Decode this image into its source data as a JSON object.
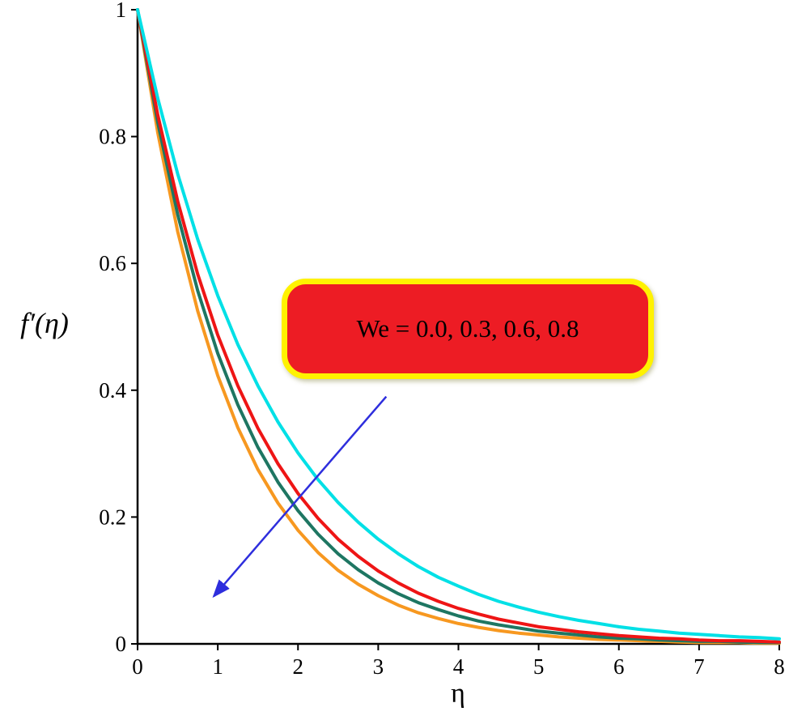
{
  "figure": {
    "background": "#ffffff"
  },
  "chart_data": {
    "type": "line",
    "title": "",
    "xlabel": "η",
    "ylabel": "f′(η)",
    "xlim": [
      0,
      8
    ],
    "ylim": [
      0,
      1
    ],
    "x_ticks": [
      0,
      1,
      2,
      3,
      4,
      5,
      6,
      7,
      8
    ],
    "y_ticks": [
      0,
      0.2,
      0.4,
      0.6,
      0.8,
      1
    ],
    "grid": false,
    "legend_position": "none",
    "axis_color": "#000000",
    "x": [
      0,
      0.25,
      0.5,
      0.75,
      1,
      1.25,
      1.5,
      1.75,
      2,
      2.25,
      2.5,
      2.75,
      3,
      3.25,
      3.5,
      3.75,
      4,
      4.25,
      4.5,
      4.75,
      5,
      5.25,
      5.5,
      5.75,
      6,
      6.25,
      6.5,
      6.75,
      7,
      7.25,
      7.5,
      7.75,
      8
    ],
    "series": [
      {
        "name": "We = 0.0",
        "color": "#00E0E6",
        "values": [
          1,
          0.861,
          0.741,
          0.638,
          0.549,
          0.472,
          0.407,
          0.35,
          0.301,
          0.259,
          0.223,
          0.192,
          0.165,
          0.142,
          0.122,
          0.105,
          0.091,
          0.078,
          0.067,
          0.058,
          0.05,
          0.043,
          0.037,
          0.032,
          0.027,
          0.023,
          0.02,
          0.017,
          0.015,
          0.013,
          0.011,
          0.01,
          0.008
        ]
      },
      {
        "name": "We = 0.3",
        "color": "#EE1515",
        "values": [
          1,
          0.835,
          0.698,
          0.583,
          0.487,
          0.407,
          0.34,
          0.284,
          0.237,
          0.198,
          0.165,
          0.138,
          0.115,
          0.096,
          0.08,
          0.067,
          0.056,
          0.047,
          0.039,
          0.033,
          0.027,
          0.023,
          0.019,
          0.016,
          0.013,
          0.011,
          0.009,
          0.008,
          0.006,
          0.005,
          0.005,
          0.004,
          0.003
        ]
      },
      {
        "name": "We = 0.6",
        "color": "#1E7662",
        "values": [
          1,
          0.823,
          0.677,
          0.557,
          0.458,
          0.377,
          0.31,
          0.255,
          0.21,
          0.173,
          0.142,
          0.117,
          0.096,
          0.079,
          0.065,
          0.054,
          0.044,
          0.036,
          0.03,
          0.025,
          0.02,
          0.017,
          0.014,
          0.011,
          0.009,
          0.008,
          0.006,
          0.005,
          0.004,
          0.004,
          0.003,
          0.002,
          0.002
        ]
      },
      {
        "name": "We = 0.8",
        "color": "#F79820",
        "values": [
          1,
          0.807,
          0.65,
          0.525,
          0.423,
          0.341,
          0.275,
          0.222,
          0.179,
          0.144,
          0.116,
          0.094,
          0.076,
          0.061,
          0.049,
          0.04,
          0.032,
          0.026,
          0.021,
          0.017,
          0.014,
          0.011,
          0.009,
          0.007,
          0.006,
          0.005,
          0.004,
          0.003,
          0.002,
          0.002,
          0.002,
          0.001,
          0.001
        ]
      }
    ],
    "annotation": {
      "label": "We = 0.0, 0.3, 0.6, 0.8",
      "box_fill": "#ED1C24",
      "box_border": "#FFF200",
      "text_color": "#000000",
      "arrow": {
        "from": [
          3.1,
          0.39
        ],
        "to": [
          0.95,
          0.075
        ],
        "color": "#2E2EDD"
      }
    }
  }
}
